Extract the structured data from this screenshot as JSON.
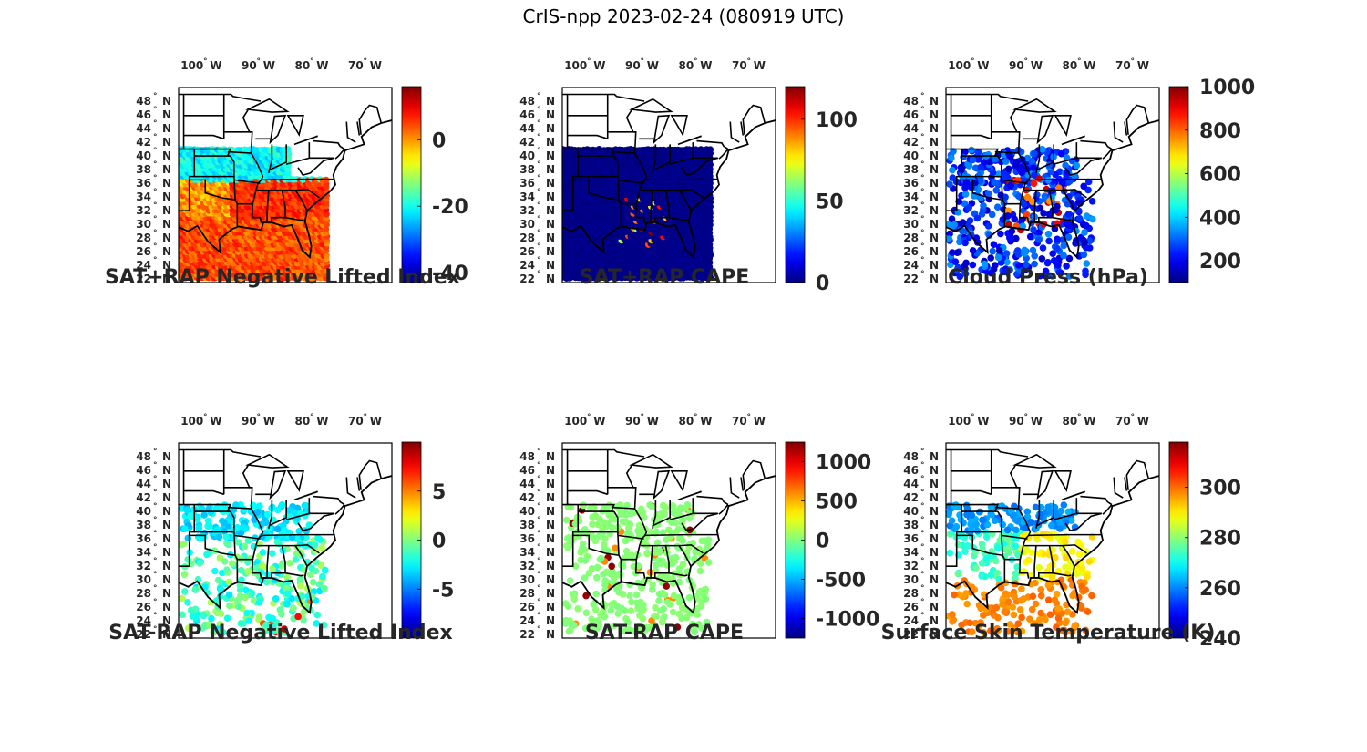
{
  "title": "CrIS-npp 2023-02-24 (080919 UTC)",
  "map": {
    "lon_ticks": [
      "100",
      "90",
      "80",
      "70"
    ],
    "lon_hemisphere": "W",
    "lat_ticks": [
      "48",
      "46",
      "44",
      "42",
      "40",
      "38",
      "36",
      "34",
      "32",
      "30",
      "28",
      "26",
      "24",
      "22"
    ],
    "lat_hemisphere": "N",
    "degree_symbol": "°"
  },
  "panels": [
    {
      "title": "SAT+RAP Negative Lifted Index",
      "colormap": "jet",
      "clim": [
        -43,
        16
      ],
      "colorbar_ticks": [
        "0",
        "-20",
        "-40"
      ],
      "colorbar_tick_values": [
        0,
        -20,
        -40
      ],
      "field": "nli_sum"
    },
    {
      "title": "SAT+RAP CAPE",
      "colormap": "jet",
      "clim": [
        0,
        120
      ],
      "colorbar_ticks": [
        "100",
        "50",
        "0"
      ],
      "colorbar_tick_values": [
        100,
        50,
        0
      ],
      "field": "cape_sum"
    },
    {
      "title": "Cloud Press (hPa)",
      "colormap": "jet",
      "clim": [
        100,
        1000
      ],
      "colorbar_ticks": [
        "1000",
        "800",
        "600",
        "400",
        "200"
      ],
      "colorbar_tick_values": [
        1000,
        800,
        600,
        400,
        200
      ],
      "field": "cloud_press"
    },
    {
      "title": "SAT-RAP Negative Lifted Index",
      "colormap": "jet",
      "clim": [
        -10,
        10
      ],
      "colorbar_ticks": [
        "5",
        "0",
        "-5"
      ],
      "colorbar_tick_values": [
        5,
        0,
        -5
      ],
      "field": "nli_diff"
    },
    {
      "title": "SAT-RAP CAPE",
      "colormap": "jet",
      "clim": [
        -1250,
        1250
      ],
      "colorbar_ticks": [
        "1000",
        "500",
        "0",
        "-500",
        "-1000"
      ],
      "colorbar_tick_values": [
        1000,
        500,
        0,
        -500,
        -1000
      ],
      "field": "cape_diff"
    },
    {
      "title": "Surface Skin Temperature (K)",
      "colormap": "jet",
      "clim": [
        240,
        318
      ],
      "colorbar_ticks": [
        "300",
        "280",
        "260",
        "240"
      ],
      "colorbar_tick_values": [
        300,
        280,
        260,
        240
      ],
      "field": "skin_temp"
    }
  ]
}
